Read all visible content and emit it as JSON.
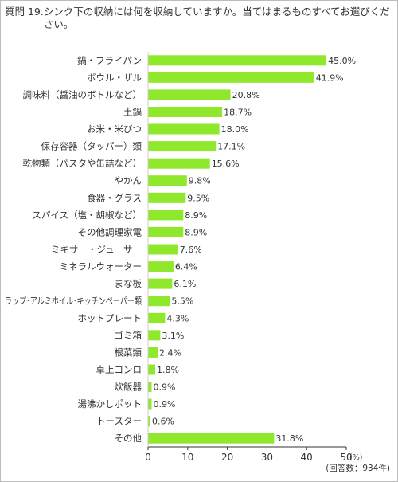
{
  "question": {
    "number": "質問 19.",
    "text": "シンク下の収納には何を収納していますか。当てはまるものすべてお選びください。"
  },
  "chart_data": {
    "type": "bar",
    "orientation": "horizontal",
    "categories": [
      "鍋・フライパン",
      "ボウル・ザル",
      "調味料（醤油のボトルなど）",
      "土鍋",
      "お米・米びつ",
      "保存容器（タッパー）類",
      "乾物類（パスタや缶詰など）",
      "やかん",
      "食器・グラス",
      "スパイス（塩・胡椒など）",
      "その他調理家電",
      "ミキサー・ジューサー",
      "ミネラルウォーター",
      "まな板",
      "ラップ･アルミホイル･キッチンペーパー類",
      "ホットプレート",
      "ゴミ箱",
      "根菜類",
      "卓上コンロ",
      "炊飯器",
      "湯沸かしポット",
      "トースター",
      "その他"
    ],
    "values": [
      45.0,
      41.9,
      20.8,
      18.7,
      18.0,
      17.1,
      15.6,
      9.8,
      9.5,
      8.9,
      8.9,
      7.6,
      6.4,
      6.1,
      5.5,
      4.3,
      3.1,
      2.4,
      1.8,
      0.9,
      0.9,
      0.6,
      31.8
    ],
    "value_labels": [
      "45.0%",
      "41.9%",
      "20.8%",
      "18.7%",
      "18.0%",
      "17.1%",
      "15.6%",
      "9.8%",
      "9.5%",
      "8.9%",
      "8.9%",
      "7.6%",
      "6.4%",
      "6.1%",
      "5.5%",
      "4.3%",
      "3.1%",
      "2.4%",
      "1.8%",
      "0.9%",
      "0.9%",
      "0.6%",
      "31.8%"
    ],
    "x_ticks": [
      "0",
      "10",
      "20",
      "30",
      "40",
      "50"
    ],
    "xlim": [
      0,
      50
    ],
    "unit_label": "(%)",
    "sample_note": "(回答数：934件)",
    "bar_color": "#8fe82b",
    "grid": false
  }
}
